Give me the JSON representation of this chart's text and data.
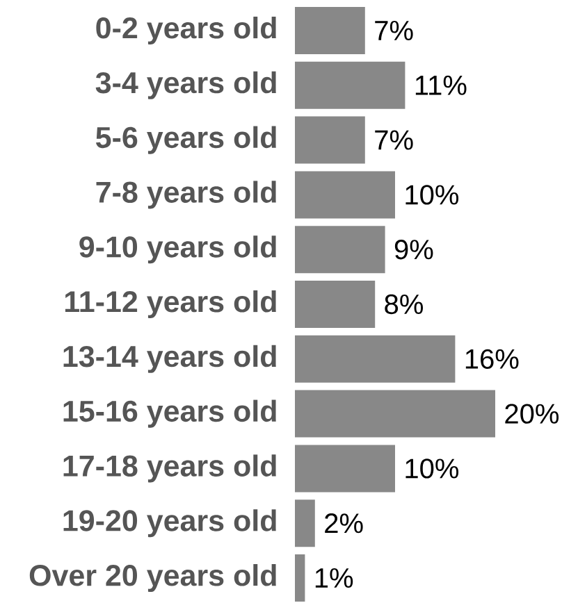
{
  "chart_data": {
    "type": "bar",
    "orientation": "horizontal",
    "categories": [
      "0-2 years old",
      "3-4 years old",
      "5-6 years old",
      "7-8 years old",
      "9-10 years old",
      "11-12 years old",
      "13-14 years old",
      "15-16 years old",
      "17-18 years old",
      "19-20 years old",
      "Over 20 years old"
    ],
    "values": [
      7,
      11,
      7,
      10,
      9,
      8,
      16,
      20,
      10,
      2,
      1
    ],
    "value_labels": [
      "7%",
      "11%",
      "7%",
      "10%",
      "9%",
      "8%",
      "16%",
      "20%",
      "10%",
      "2%",
      "1%"
    ],
    "color": "#888888"
  }
}
